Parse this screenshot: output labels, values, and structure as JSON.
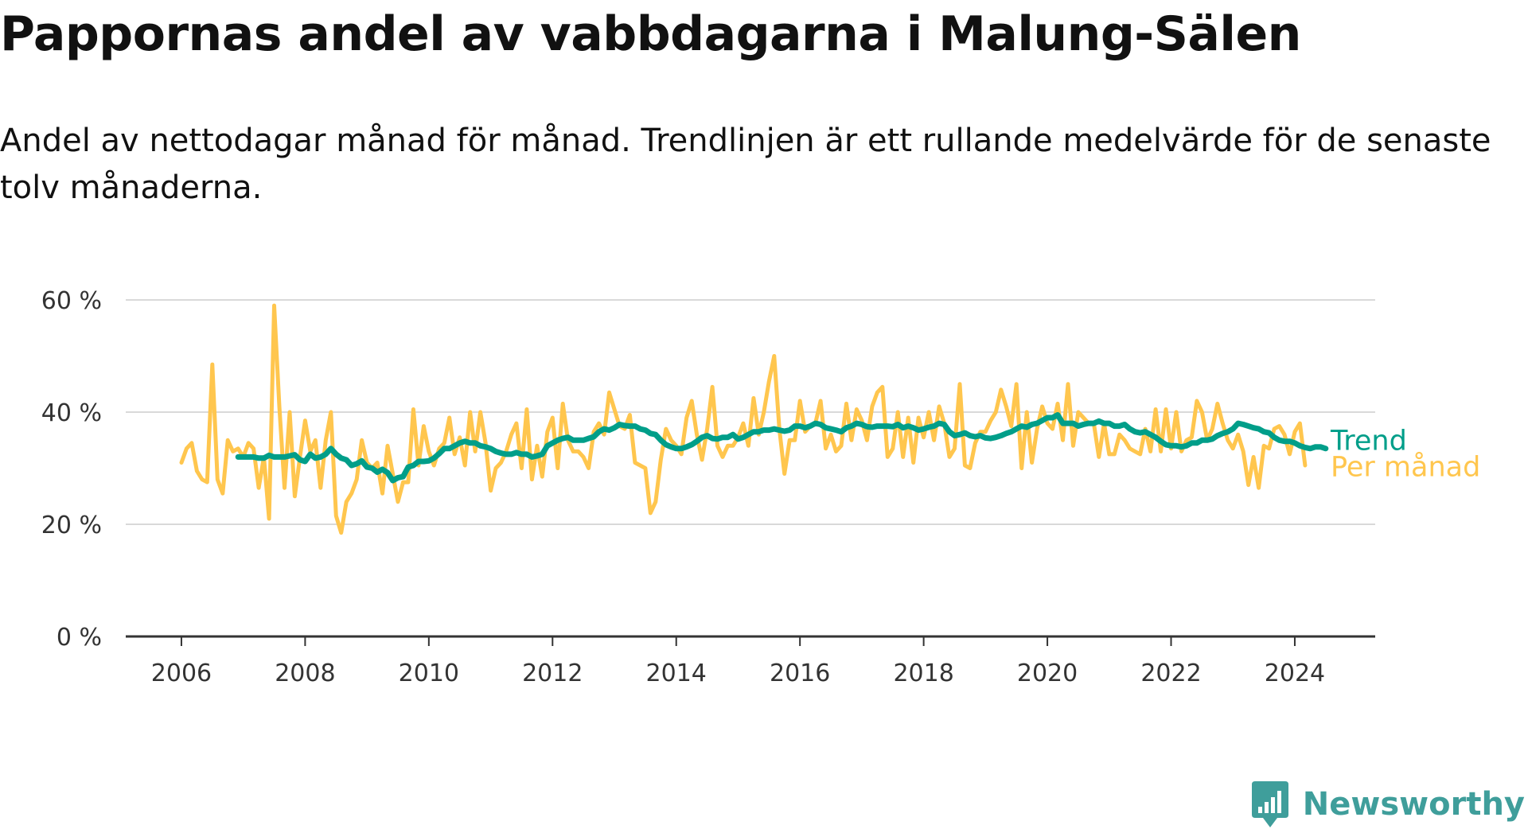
{
  "header": {
    "title": "Pappornas andel av vabbdagarna i Malung-Sälen",
    "subtitle": "Andel av nettodagar månad för månad. Trendlinjen är ett rullande medelvärde för de senaste tolv månaderna."
  },
  "brand": {
    "name": "Newsworthy",
    "icon": "newsworthy-logo-icon",
    "color": "#3f9e9b"
  },
  "chart_data": {
    "type": "line",
    "title": "Pappornas andel av vabbdagarna i Malung-Sälen",
    "subtitle": "Andel av nettodagar månad för månad. Trendlinjen är ett rullande medelvärde för de senaste tolv månaderna.",
    "xlabel": "",
    "ylabel": "",
    "x_start": "2006-01",
    "x_end": "2024-05",
    "xlim": [
      2005.1,
      2025.3
    ],
    "ylim": [
      0,
      60
    ],
    "x_ticks": [
      2006,
      2008,
      2010,
      2012,
      2014,
      2016,
      2018,
      2020,
      2022,
      2024
    ],
    "x_tick_labels": [
      "2006",
      "2008",
      "2010",
      "2012",
      "2014",
      "2016",
      "2018",
      "2020",
      "2022",
      "2024"
    ],
    "y_ticks": [
      0,
      20,
      40,
      60
    ],
    "y_tick_labels": [
      "0 %",
      "20 %",
      "40 %",
      "60 %"
    ],
    "grid": true,
    "legend": "direct labels at right end of lines",
    "series": [
      {
        "name": "Per månad",
        "color": "#ffc64e",
        "start": "2006-01",
        "values": [
          31,
          33.5,
          34.5,
          29.5,
          28,
          27.5,
          48.5,
          28,
          25.5,
          35,
          33,
          33.5,
          32,
          34.5,
          33.5,
          26.5,
          32,
          21,
          59,
          41,
          26.5,
          40,
          25,
          32,
          38.5,
          33,
          35,
          26.5,
          35,
          40,
          21.5,
          18.5,
          24,
          25.5,
          28,
          35,
          31,
          30,
          31,
          25.5,
          34,
          29,
          24,
          27.5,
          27.5,
          40.5,
          30.5,
          37.5,
          33,
          30.5,
          33.5,
          34.5,
          39,
          32.5,
          35.5,
          30.5,
          40,
          33,
          40,
          34.5,
          26,
          30,
          31,
          33,
          36,
          38,
          30,
          40.5,
          28,
          34,
          28.5,
          36.5,
          39,
          30,
          41.5,
          35,
          33,
          33,
          32,
          30,
          36.5,
          38,
          36,
          43.5,
          40.5,
          37.5,
          37,
          39.5,
          31,
          30.5,
          30,
          22,
          24,
          31.5,
          37,
          35,
          34,
          32.5,
          39,
          42,
          36,
          31.5,
          37,
          44.5,
          34,
          32,
          34,
          34,
          35.5,
          38,
          34,
          42.5,
          36,
          40,
          45.5,
          50,
          37,
          29,
          35,
          35,
          42,
          36.5,
          37.5,
          38,
          42,
          33.5,
          36,
          33,
          34,
          41.5,
          35,
          40.5,
          38.5,
          35,
          41,
          43.5,
          44.5,
          32,
          33.5,
          40,
          32,
          39,
          31,
          39,
          35.5,
          40,
          35,
          41,
          38,
          32,
          33.5,
          45,
          30.5,
          30,
          34.5,
          36.5,
          36.5,
          38.5,
          40,
          44,
          41,
          37.5,
          45,
          30,
          40,
          31,
          37,
          41,
          38,
          37,
          41.5,
          35,
          45,
          34,
          40,
          39,
          38,
          38,
          32,
          38,
          32.5,
          32.5,
          36,
          35,
          33.5,
          33,
          32.5,
          37,
          33,
          40.5,
          33,
          40.5,
          33.5,
          40,
          33,
          35,
          35.5,
          42,
          40,
          35,
          37,
          41.5,
          38,
          35,
          33.5,
          36,
          33,
          27,
          32,
          26.5,
          34,
          33.5,
          37,
          37.5,
          36,
          32.5,
          36.5,
          38,
          30.5
        ]
      },
      {
        "name": "Trend",
        "color": "#009e89",
        "start": "2006-12",
        "values": [
          32,
          32,
          32,
          32,
          31.8,
          31.8,
          32.3,
          32,
          32,
          32,
          32.2,
          32.4,
          31.5,
          31.2,
          32.5,
          31.8,
          32,
          32.5,
          33.5,
          32.5,
          31.8,
          31.5,
          30.5,
          30.8,
          31.3,
          30.2,
          30,
          29.3,
          29.8,
          29.2,
          27.8,
          28.3,
          28.5,
          30.2,
          30.5,
          31.2,
          31.2,
          31.3,
          31.8,
          32.6,
          33.5,
          33.5,
          34,
          34.5,
          34.8,
          34.5,
          34.5,
          34,
          33.8,
          33.5,
          33,
          32.7,
          32.5,
          32.5,
          32.8,
          32.5,
          32.5,
          32,
          32.2,
          32.5,
          34,
          34.5,
          35,
          35.3,
          35.5,
          35,
          35,
          35,
          35.3,
          35.6,
          36.5,
          37,
          36.8,
          37.2,
          37.8,
          37.6,
          37.5,
          37.5,
          37,
          36.8,
          36.2,
          36,
          35,
          34.2,
          33.8,
          33.5,
          33.5,
          33.8,
          34.2,
          34.8,
          35.5,
          35.8,
          35.3,
          35.2,
          35.5,
          35.5,
          36,
          35.2,
          35.5,
          36,
          36.5,
          36.5,
          36.8,
          36.8,
          37,
          36.8,
          36.6,
          36.8,
          37.5,
          37.5,
          37.2,
          37.5,
          38,
          37.8,
          37.2,
          37,
          36.8,
          36.5,
          37.2,
          37.5,
          38,
          37.8,
          37.4,
          37.3,
          37.5,
          37.5,
          37.5,
          37.4,
          37.8,
          37.2,
          37.5,
          37.2,
          36.8,
          37,
          37.3,
          37.5,
          38,
          37.8,
          36.5,
          35.8,
          36,
          36.3,
          35.8,
          35.6,
          35.8,
          35.4,
          35.3,
          35.5,
          35.8,
          36.2,
          36.5,
          37,
          37.5,
          37.3,
          37.8,
          38,
          38.5,
          39,
          39,
          39.5,
          38,
          38,
          38,
          37.5,
          37.8,
          38,
          38,
          38.4,
          38,
          38,
          37.5,
          37.5,
          37.8,
          37,
          36.5,
          36.3,
          36.5,
          36,
          35.5,
          34.8,
          34.2,
          34,
          34,
          33.8,
          34,
          34.5,
          34.5,
          35,
          35,
          35.2,
          35.8,
          36.2,
          36.5,
          37,
          38,
          37.8,
          37.5,
          37.2,
          37,
          36.5,
          36.3,
          35.5,
          35,
          34.8,
          34.8,
          34.5,
          34,
          33.7,
          33.5,
          33.8,
          33.8,
          33.5
        ]
      }
    ]
  }
}
